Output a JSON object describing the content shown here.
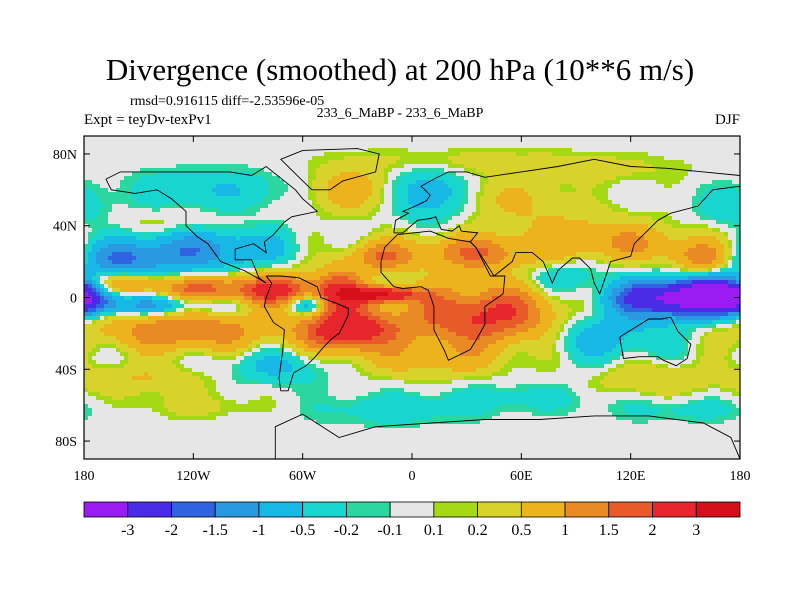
{
  "title": "Divergence (smoothed) at 200 hPa (10**6 m/s)",
  "stats": {
    "rmsd_label": "rmsd=",
    "rmsd": "0.916115",
    "diff_label": "diff=",
    "diff": "-2.53596e-05"
  },
  "expt_label": "Expt = teyDv-texPv1",
  "cases": "233_6_MaBP - 233_6_MaBP",
  "season": "DJF",
  "chart_data": {
    "type": "heatmap",
    "variable": "Divergence (smoothed) at 200 hPa",
    "units": "10**6 m/s",
    "x_range": [
      -180,
      180
    ],
    "y_range": [
      -90,
      90
    ],
    "x_ticks": [
      {
        "value": -180,
        "label": "180"
      },
      {
        "value": -120,
        "label": "120W"
      },
      {
        "value": -60,
        "label": "60W"
      },
      {
        "value": 0,
        "label": "0"
      },
      {
        "value": 60,
        "label": "60E"
      },
      {
        "value": 120,
        "label": "120E"
      },
      {
        "value": 180,
        "label": "180"
      }
    ],
    "y_ticks": [
      {
        "value": 80,
        "label": "80N"
      },
      {
        "value": 40,
        "label": "40N"
      },
      {
        "value": 0,
        "label": "0"
      },
      {
        "value": -40,
        "label": "40S"
      },
      {
        "value": -80,
        "label": "80S"
      }
    ],
    "colorbar": {
      "levels": [
        -3,
        -2,
        -1.5,
        -1,
        -0.5,
        -0.2,
        -0.1,
        0.1,
        0.2,
        0.5,
        1,
        1.5,
        2,
        3
      ],
      "labels": [
        "-3",
        "-2",
        "-1.5",
        "-1",
        "-0.5",
        "-0.2",
        "-0.1",
        "0.1",
        "0.2",
        "0.5",
        "1",
        "1.5",
        "2",
        "3"
      ],
      "colors": [
        "#9a1cf2",
        "#4b2ce6",
        "#2f63e0",
        "#2a99e2",
        "#17b7e6",
        "#18d6cf",
        "#2bd7a0",
        "#e6e6e6",
        "#a4d914",
        "#d8d22a",
        "#ecb31c",
        "#e98a24",
        "#e95a2a",
        "#e6262a",
        "#d50f19"
      ]
    },
    "features": [
      {
        "lon": 148,
        "lat": 0,
        "value": -3.5,
        "sx": 26,
        "sy": 7
      },
      {
        "lon": 172,
        "lat": 2,
        "value": -2.6,
        "sx": 14,
        "sy": 6
      },
      {
        "lon": -18,
        "lat": 2,
        "value": 3.2,
        "sx": 14,
        "sy": 3
      },
      {
        "lon": -58,
        "lat": -4,
        "value": -1.4,
        "sx": 9,
        "sy": 4
      },
      {
        "lon": -40,
        "lat": 3,
        "value": 1.8,
        "sx": 9,
        "sy": 10
      },
      {
        "lon": -72,
        "lat": 4,
        "value": 2.0,
        "sx": 16,
        "sy": 7
      },
      {
        "lon": -112,
        "lat": 5,
        "value": 1.6,
        "sx": 20,
        "sy": 5
      },
      {
        "lon": -160,
        "lat": 8,
        "value": 1.4,
        "sx": 16,
        "sy": 5
      },
      {
        "lon": -140,
        "lat": -4,
        "value": -1.1,
        "sx": 30,
        "sy": 4
      },
      {
        "lon": -160,
        "lat": 20,
        "value": -1.2,
        "sx": 18,
        "sy": 7
      },
      {
        "lon": -118,
        "lat": 27,
        "value": -1.3,
        "sx": 30,
        "sy": 9
      },
      {
        "lon": -125,
        "lat": -18,
        "value": 1.5,
        "sx": 34,
        "sy": 8
      },
      {
        "lon": -35,
        "lat": -18,
        "value": 2.6,
        "sx": 18,
        "sy": 8
      },
      {
        "lon": 40,
        "lat": -10,
        "value": 2.2,
        "sx": 32,
        "sy": 12
      },
      {
        "lon": 35,
        "lat": 25,
        "value": 1.4,
        "sx": 26,
        "sy": 7
      },
      {
        "lon": -18,
        "lat": 23,
        "value": 1.3,
        "sx": 12,
        "sy": 6
      },
      {
        "lon": 120,
        "lat": 30,
        "value": 0.9,
        "sx": 28,
        "sy": 7
      },
      {
        "lon": 160,
        "lat": 22,
        "value": 1.2,
        "sx": 12,
        "sy": 6
      },
      {
        "lon": 100,
        "lat": -20,
        "value": -0.9,
        "sx": 26,
        "sy": 10
      },
      {
        "lon": 80,
        "lat": 12,
        "value": -0.6,
        "sx": 14,
        "sy": 6
      },
      {
        "lon": 10,
        "lat": 58,
        "value": -0.9,
        "sx": 14,
        "sy": 10
      },
      {
        "lon": -35,
        "lat": 60,
        "value": 0.8,
        "sx": 16,
        "sy": 9
      },
      {
        "lon": -110,
        "lat": 60,
        "value": -0.5,
        "sx": 32,
        "sy": 8
      },
      {
        "lon": 55,
        "lat": 55,
        "value": 0.5,
        "sx": 22,
        "sy": 9
      },
      {
        "lon": 90,
        "lat": 40,
        "value": 0.4,
        "sx": 28,
        "sy": 8
      },
      {
        "lon": -130,
        "lat": 40,
        "value": 0.4,
        "sx": 26,
        "sy": 6
      },
      {
        "lon": 175,
        "lat": 50,
        "value": -0.4,
        "sx": 14,
        "sy": 8
      },
      {
        "lon": -75,
        "lat": -38,
        "value": -0.6,
        "sx": 22,
        "sy": 7
      },
      {
        "lon": 10,
        "lat": -35,
        "value": 0.6,
        "sx": 30,
        "sy": 7
      },
      {
        "lon": 130,
        "lat": -45,
        "value": 0.5,
        "sx": 22,
        "sy": 7
      },
      {
        "lon": -150,
        "lat": -45,
        "value": 0.5,
        "sx": 30,
        "sy": 6
      },
      {
        "lon": 60,
        "lat": -55,
        "value": -0.3,
        "sx": 30,
        "sy": 6
      },
      {
        "lon": -10,
        "lat": -62,
        "value": -0.4,
        "sx": 30,
        "sy": 6
      },
      {
        "lon": 150,
        "lat": -62,
        "value": -0.3,
        "sx": 28,
        "sy": 5
      },
      {
        "lon": -120,
        "lat": -60,
        "value": 0.3,
        "sx": 26,
        "sy": 5
      },
      {
        "lon": 20,
        "lat": 76,
        "value": 0.3,
        "sx": 40,
        "sy": 5
      },
      {
        "lon": 100,
        "lat": 72,
        "value": 0.3,
        "sx": 36,
        "sy": 6
      }
    ]
  }
}
